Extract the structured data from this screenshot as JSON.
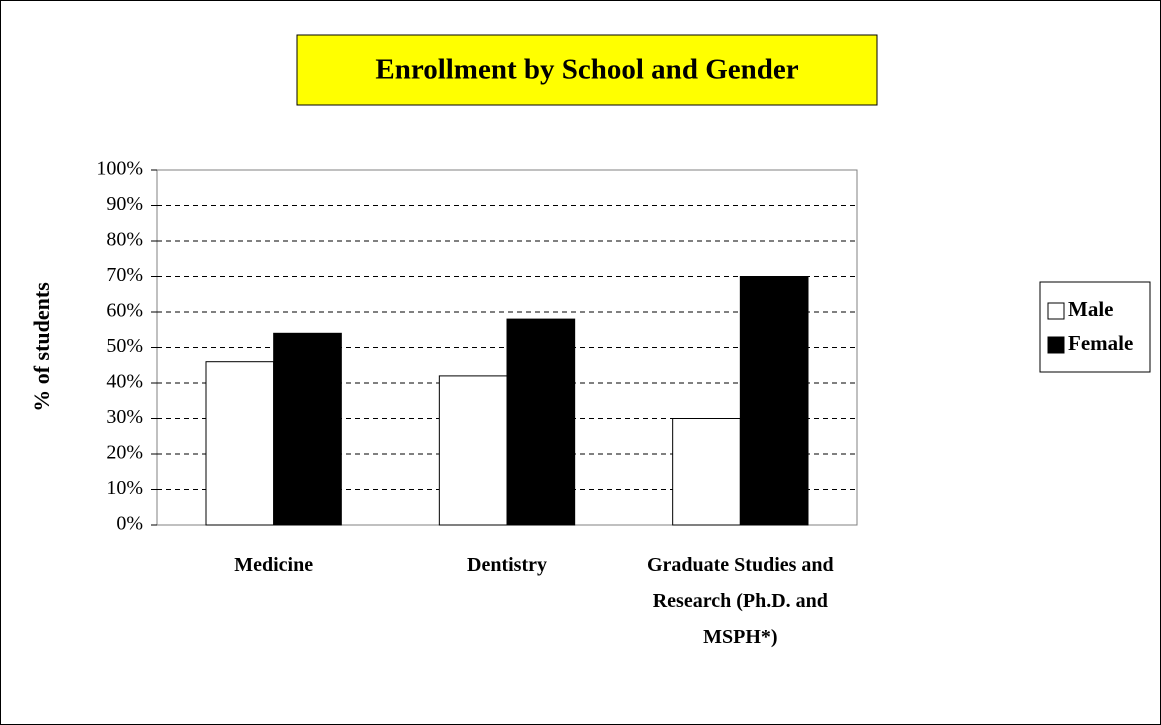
{
  "chart_data": {
    "type": "bar",
    "title": "Enrollment by School and Gender",
    "ylabel": "% of students",
    "categories": [
      "Medicine",
      "Dentistry",
      "Graduate Studies and Research (Ph.D. and MSPH*)"
    ],
    "series": [
      {
        "name": "Male",
        "color": "#ffffff",
        "values": [
          46,
          42,
          30
        ]
      },
      {
        "name": "Female",
        "color": "#000000",
        "values": [
          54,
          58,
          70
        ]
      }
    ],
    "ylim": [
      0,
      100
    ],
    "yticks": [
      {
        "value": 0,
        "label": "0%"
      },
      {
        "value": 10,
        "label": "10%"
      },
      {
        "value": 20,
        "label": "20%"
      },
      {
        "value": 30,
        "label": "30%"
      },
      {
        "value": 40,
        "label": "40%"
      },
      {
        "value": 50,
        "label": "50%"
      },
      {
        "value": 60,
        "label": "60%"
      },
      {
        "value": 70,
        "label": "70%"
      },
      {
        "value": 80,
        "label": "80%"
      },
      {
        "value": 90,
        "label": "90%"
      },
      {
        "value": 100,
        "label": "100%"
      }
    ],
    "grid": true,
    "legend": "right",
    "title_background": "#ffff00"
  }
}
